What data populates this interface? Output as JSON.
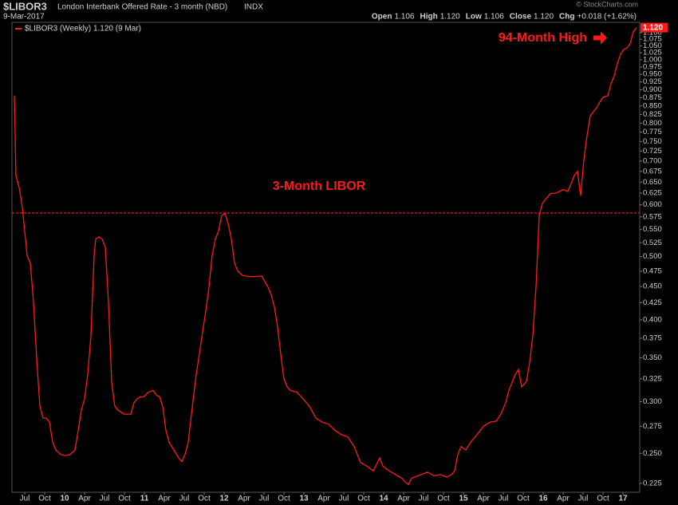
{
  "chart_data": {
    "type": "line",
    "title": "$LIBOR3",
    "subtitle": "London Interbank Offered Rate - 3 month (NBD)",
    "exchange": "INDX",
    "date": "9-Mar-2017",
    "quote": [
      {
        "label": "Open",
        "value": "1.106"
      },
      {
        "label": "High",
        "value": "1.120"
      },
      {
        "label": "Low",
        "value": "1.106"
      },
      {
        "label": "Close",
        "value": "1.120"
      },
      {
        "label": "Chg",
        "value": "+0.018 (+1.62%)"
      }
    ],
    "credit": "© StockCharts.com",
    "log_scale": true,
    "grid": false,
    "legend": "top-left",
    "x": [
      2009.37,
      2009.39,
      2009.43,
      2009.47,
      2009.53,
      2009.57,
      2009.61,
      2009.65,
      2009.69,
      2009.73,
      2009.77,
      2009.81,
      2009.85,
      2009.89,
      2009.95,
      2010.01,
      2010.07,
      2010.13,
      2010.17,
      2010.21,
      2010.25,
      2010.29,
      2010.33,
      2010.37,
      2010.39,
      2010.43,
      2010.47,
      2010.51,
      2010.55,
      2010.59,
      2010.63,
      2010.67,
      2010.75,
      2010.83,
      2010.87,
      2010.91,
      2010.95,
      2010.99,
      2011.05,
      2011.11,
      2011.15,
      2011.19,
      2011.23,
      2011.27,
      2011.31,
      2011.37,
      2011.43,
      2011.47,
      2011.51,
      2011.55,
      2011.59,
      2011.65,
      2011.71,
      2011.77,
      2011.81,
      2011.85,
      2011.89,
      2011.93,
      2011.97,
      2012.01,
      2012.05,
      2012.09,
      2012.13,
      2012.17,
      2012.23,
      2012.31,
      2012.39,
      2012.47,
      2012.55,
      2012.59,
      2012.63,
      2012.67,
      2012.71,
      2012.75,
      2012.79,
      2012.83,
      2012.91,
      2012.99,
      2013.07,
      2013.15,
      2013.23,
      2013.31,
      2013.39,
      2013.47,
      2013.55,
      2013.63,
      2013.71,
      2013.79,
      2013.87,
      2013.95,
      2013.99,
      2014.07,
      2014.15,
      2014.23,
      2014.27,
      2014.31,
      2014.35,
      2014.39,
      2014.47,
      2014.55,
      2014.63,
      2014.71,
      2014.79,
      2014.85,
      2014.89,
      2014.93,
      2014.97,
      2015.03,
      2015.09,
      2015.17,
      2015.25,
      2015.33,
      2015.41,
      2015.47,
      2015.53,
      2015.57,
      2015.61,
      2015.65,
      2015.69,
      2015.73,
      2015.79,
      2015.83,
      2015.87,
      2015.91,
      2015.95,
      2015.99,
      2016.03,
      2016.09,
      2016.17,
      2016.25,
      2016.31,
      2016.35,
      2016.39,
      2016.43,
      2016.47,
      2016.51,
      2016.55,
      2016.59,
      2016.63,
      2016.67,
      2016.71,
      2016.75,
      2016.81,
      2016.85,
      2016.89,
      2016.93,
      2016.97,
      2017.01,
      2017.05,
      2017.09,
      2017.13,
      2017.17
    ],
    "series": [
      {
        "name": "$LIBOR3 (Weekly) 1.120 (9 Mar)",
        "color": "#ff1a1a",
        "values": [
          0.881,
          0.665,
          0.638,
          0.595,
          0.502,
          0.489,
          0.425,
          0.349,
          0.295,
          0.283,
          0.283,
          0.279,
          0.26,
          0.253,
          0.249,
          0.248,
          0.249,
          0.253,
          0.271,
          0.291,
          0.303,
          0.33,
          0.379,
          0.502,
          0.532,
          0.536,
          0.532,
          0.517,
          0.425,
          0.321,
          0.295,
          0.291,
          0.287,
          0.287,
          0.299,
          0.303,
          0.305,
          0.305,
          0.31,
          0.312,
          0.307,
          0.305,
          0.295,
          0.271,
          0.26,
          0.253,
          0.246,
          0.243,
          0.249,
          0.26,
          0.287,
          0.33,
          0.369,
          0.413,
          0.449,
          0.502,
          0.532,
          0.547,
          0.578,
          0.582,
          0.562,
          0.532,
          0.489,
          0.475,
          0.468,
          0.466,
          0.466,
          0.467,
          0.449,
          0.437,
          0.419,
          0.39,
          0.354,
          0.325,
          0.316,
          0.312,
          0.31,
          0.303,
          0.295,
          0.283,
          0.279,
          0.277,
          0.271,
          0.267,
          0.265,
          0.256,
          0.242,
          0.239,
          0.235,
          0.246,
          0.239,
          0.235,
          0.232,
          0.229,
          0.226,
          0.224,
          0.229,
          0.23,
          0.232,
          0.234,
          0.231,
          0.232,
          0.23,
          0.232,
          0.235,
          0.249,
          0.256,
          0.253,
          0.26,
          0.267,
          0.275,
          0.279,
          0.28,
          0.287,
          0.299,
          0.312,
          0.321,
          0.33,
          0.336,
          0.316,
          0.322,
          0.344,
          0.379,
          0.449,
          0.578,
          0.603,
          0.612,
          0.624,
          0.626,
          0.633,
          0.629,
          0.647,
          0.665,
          0.675,
          0.62,
          0.704,
          0.766,
          0.821,
          0.833,
          0.845,
          0.862,
          0.876,
          0.881,
          0.919,
          0.945,
          0.986,
          1.02,
          1.037,
          1.043,
          1.058,
          1.104,
          1.12
        ]
      }
    ],
    "last_label": {
      "value": 1.12,
      "label": "1.120"
    },
    "hline": {
      "value": 0.583,
      "color": "#ff1a1a"
    },
    "annotations": [
      {
        "text": "3-Month LIBOR",
        "x": 2013.19,
        "y": 0.64
      },
      {
        "text": "94-Month High",
        "x": 2016.55,
        "y": 1.08
      }
    ],
    "xlim": [
      2009.34,
      2017.21
    ],
    "xticks": [
      {
        "value": 2009.5,
        "label": "Jul"
      },
      {
        "value": 2009.75,
        "label": "Oct"
      },
      {
        "value": 2010,
        "label": "10"
      },
      {
        "value": 2010.25,
        "label": "Apr"
      },
      {
        "value": 2010.5,
        "label": "Jul"
      },
      {
        "value": 2010.75,
        "label": "Oct"
      },
      {
        "value": 2011,
        "label": "11"
      },
      {
        "value": 2011.25,
        "label": "Apr"
      },
      {
        "value": 2011.5,
        "label": "Jul"
      },
      {
        "value": 2011.75,
        "label": "Oct"
      },
      {
        "value": 2012,
        "label": "12"
      },
      {
        "value": 2012.25,
        "label": "Apr"
      },
      {
        "value": 2012.5,
        "label": "Jul"
      },
      {
        "value": 2012.75,
        "label": "Oct"
      },
      {
        "value": 2013,
        "label": "13"
      },
      {
        "value": 2013.25,
        "label": "Apr"
      },
      {
        "value": 2013.5,
        "label": "Jul"
      },
      {
        "value": 2013.75,
        "label": "Oct"
      },
      {
        "value": 2014,
        "label": "14"
      },
      {
        "value": 2014.25,
        "label": "Apr"
      },
      {
        "value": 2014.5,
        "label": "Jul"
      },
      {
        "value": 2014.75,
        "label": "Oct"
      },
      {
        "value": 2015,
        "label": "15"
      },
      {
        "value": 2015.25,
        "label": "Apr"
      },
      {
        "value": 2015.5,
        "label": "Jul"
      },
      {
        "value": 2015.75,
        "label": "Oct"
      },
      {
        "value": 2016,
        "label": "16"
      },
      {
        "value": 2016.25,
        "label": "Apr"
      },
      {
        "value": 2016.5,
        "label": "Jul"
      },
      {
        "value": 2016.75,
        "label": "Oct"
      },
      {
        "value": 2017,
        "label": "17"
      }
    ],
    "ylim": [
      0.218,
      1.141
    ],
    "yticks": [
      {
        "value": 0.225,
        "label": "0.225"
      },
      {
        "value": 0.25,
        "label": "0.250"
      },
      {
        "value": 0.275,
        "label": "0.275"
      },
      {
        "value": 0.3,
        "label": "0.300"
      },
      {
        "value": 0.325,
        "label": "0.325"
      },
      {
        "value": 0.35,
        "label": "0.350"
      },
      {
        "value": 0.375,
        "label": "0.375"
      },
      {
        "value": 0.4,
        "label": "0.400"
      },
      {
        "value": 0.425,
        "label": "0.425"
      },
      {
        "value": 0.45,
        "label": "0.450"
      },
      {
        "value": 0.475,
        "label": "0.475"
      },
      {
        "value": 0.5,
        "label": "0.500"
      },
      {
        "value": 0.525,
        "label": "0.525"
      },
      {
        "value": 0.55,
        "label": "0.550"
      },
      {
        "value": 0.575,
        "label": "0.575"
      },
      {
        "value": 0.6,
        "label": "0.600"
      },
      {
        "value": 0.625,
        "label": "0.625"
      },
      {
        "value": 0.65,
        "label": "0.650"
      },
      {
        "value": 0.675,
        "label": "0.675"
      },
      {
        "value": 0.7,
        "label": "0.700"
      },
      {
        "value": 0.725,
        "label": "0.725"
      },
      {
        "value": 0.75,
        "label": "0.750"
      },
      {
        "value": 0.775,
        "label": "0.775"
      },
      {
        "value": 0.8,
        "label": "0.800"
      },
      {
        "value": 0.825,
        "label": "0.825"
      },
      {
        "value": 0.85,
        "label": "0.850"
      },
      {
        "value": 0.875,
        "label": "0.875"
      },
      {
        "value": 0.9,
        "label": "0.900"
      },
      {
        "value": 0.925,
        "label": "0.925"
      },
      {
        "value": 0.95,
        "label": "0.950"
      },
      {
        "value": 0.975,
        "label": "0.975"
      },
      {
        "value": 1,
        "label": "1.000"
      },
      {
        "value": 1.025,
        "label": "1.025"
      },
      {
        "value": 1.05,
        "label": "1.050"
      },
      {
        "value": 1.075,
        "label": "1.075"
      },
      {
        "value": 1.1,
        "label": "1.100"
      }
    ]
  }
}
